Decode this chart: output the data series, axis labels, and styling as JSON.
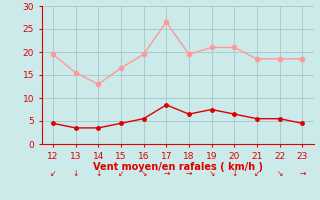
{
  "x": [
    12,
    13,
    14,
    15,
    16,
    17,
    18,
    19,
    20,
    21,
    22,
    23
  ],
  "wind_avg": [
    4.5,
    3.5,
    3.5,
    4.5,
    5.5,
    8.5,
    6.5,
    7.5,
    6.5,
    5.5,
    5.5,
    4.5
  ],
  "wind_gust": [
    19.5,
    15.5,
    13.0,
    16.5,
    19.5,
    26.5,
    19.5,
    21.0,
    21.0,
    18.5,
    18.5,
    18.5
  ],
  "avg_color": "#dd0000",
  "gust_color": "#ff9999",
  "bg_color": "#cceaea",
  "grid_color": "#aacccc",
  "xlabel": "Vent moyen/en rafales ( km/h )",
  "xlabel_color": "#dd0000",
  "tick_color": "#dd0000",
  "spine_color": "#dd0000",
  "ylim": [
    0,
    30
  ],
  "yticks": [
    0,
    5,
    10,
    15,
    20,
    25,
    30
  ],
  "xlim": [
    11.5,
    23.5
  ],
  "xticks": [
    12,
    13,
    14,
    15,
    16,
    17,
    18,
    19,
    20,
    21,
    22,
    23
  ],
  "arrow_symbols": [
    "↙",
    "↓",
    "↓",
    "↙",
    "↘",
    "→",
    "→",
    "↘",
    "↓",
    "↙",
    "↘",
    "→"
  ]
}
